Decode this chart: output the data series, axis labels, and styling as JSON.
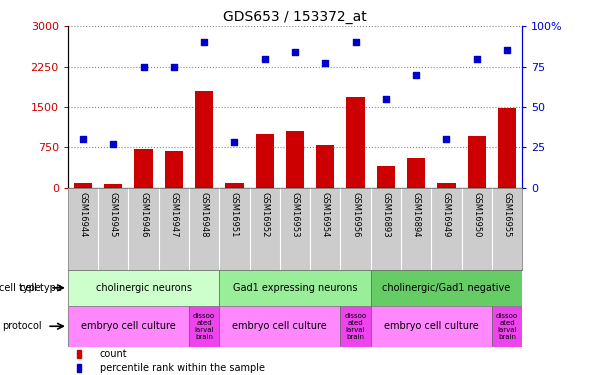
{
  "title": "GDS653 / 153372_at",
  "samples": [
    "GSM16944",
    "GSM16945",
    "GSM16946",
    "GSM16947",
    "GSM16948",
    "GSM16951",
    "GSM16952",
    "GSM16953",
    "GSM16954",
    "GSM16956",
    "GSM16893",
    "GSM16894",
    "GSM16949",
    "GSM16950",
    "GSM16955"
  ],
  "bar_values": [
    90,
    60,
    720,
    680,
    1800,
    80,
    1000,
    1050,
    800,
    1680,
    400,
    550,
    90,
    950,
    1470
  ],
  "scatter_values": [
    30,
    27,
    75,
    75,
    90,
    28,
    80,
    84,
    77,
    90,
    55,
    70,
    30,
    80,
    85
  ],
  "bar_color": "#cc0000",
  "scatter_color": "#0000cc",
  "ylim_left": [
    0,
    3000
  ],
  "ylim_right": [
    0,
    100
  ],
  "yticks_left": [
    0,
    750,
    1500,
    2250,
    3000
  ],
  "yticks_right": [
    0,
    25,
    50,
    75,
    100
  ],
  "ytick_labels_left": [
    "0",
    "750",
    "1500",
    "2250",
    "3000"
  ],
  "ytick_labels_right": [
    "0",
    "25",
    "50",
    "75",
    "100%"
  ],
  "cell_type_groups": [
    {
      "label": "cholinergic neurons",
      "start": 0,
      "end": 5
    },
    {
      "label": "Gad1 expressing neurons",
      "start": 5,
      "end": 10
    },
    {
      "label": "cholinergic/Gad1 negative",
      "start": 10,
      "end": 15
    }
  ],
  "cell_type_colors": [
    "#ccffcc",
    "#99ee99",
    "#66cc66"
  ],
  "protocol_groups": [
    {
      "label": "embryo cell culture",
      "start": 0,
      "end": 4,
      "small": false
    },
    {
      "label": "dissoo\nated\nlarval\nbrain",
      "start": 4,
      "end": 5,
      "small": true
    },
    {
      "label": "embryo cell culture",
      "start": 5,
      "end": 9,
      "small": false
    },
    {
      "label": "dissoo\nated\nlarval\nbrain",
      "start": 9,
      "end": 10,
      "small": true
    },
    {
      "label": "embryo cell culture",
      "start": 10,
      "end": 14,
      "small": false
    },
    {
      "label": "dissoo\nated\nlarval\nbrain",
      "start": 14,
      "end": 15,
      "small": true
    }
  ],
  "protocol_color_main": "#ff88ff",
  "protocol_color_small": "#ee44ee",
  "legend_count_color": "#cc0000",
  "legend_percentile_color": "#0000cc",
  "grid_color": "#888888",
  "xtick_bg_color": "#cccccc"
}
